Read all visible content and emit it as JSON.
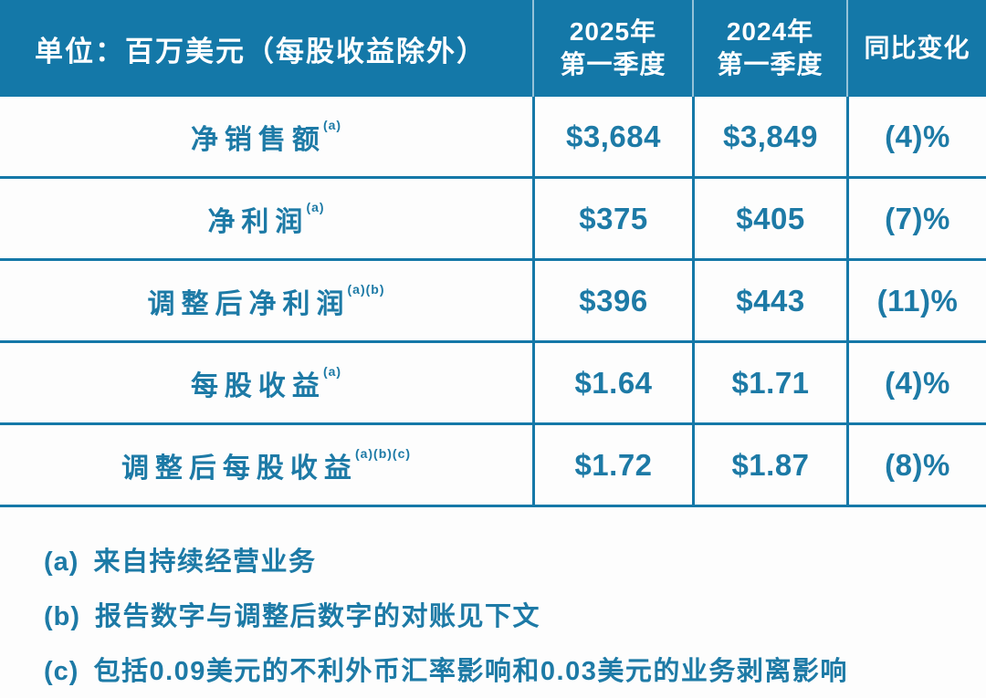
{
  "colors": {
    "header_background": "#1478a8",
    "header_text": "#ffffff",
    "body_text": "#1d7aa6",
    "grid_line": "#1578a8",
    "page_background": "#fdfdfd"
  },
  "table": {
    "header": {
      "unit_label": "单位：百万美元（每股收益除外）",
      "col_q1_2025": "2025年\n第一季度",
      "col_q1_2024": "2024年\n第一季度",
      "col_yoy": "同比变化"
    },
    "rows": [
      {
        "label": "净销售额",
        "footnote_marks": "(a)",
        "q1_2025": "$3,684",
        "q1_2024": "$3,849",
        "yoy_change": "(4)%"
      },
      {
        "label": "净利润",
        "footnote_marks": "(a)",
        "q1_2025": "$375",
        "q1_2024": "$405",
        "yoy_change": "(7)%"
      },
      {
        "label": "调整后净利润",
        "footnote_marks": "(a)(b)",
        "q1_2025": "$396",
        "q1_2024": "$443",
        "yoy_change": "(11)%"
      },
      {
        "label": "每股收益",
        "footnote_marks": "(a)",
        "q1_2025": "$1.64",
        "q1_2024": "$1.71",
        "yoy_change": "(4)%"
      },
      {
        "label": "调整后每股收益",
        "footnote_marks": "(a)(b)(c)",
        "q1_2025": "$1.72",
        "q1_2024": "$1.87",
        "yoy_change": "(8)%"
      }
    ]
  },
  "footnotes": [
    {
      "marker": "(a)",
      "text": "来自持续经营业务"
    },
    {
      "marker": "(b)",
      "text": "报告数字与调整后数字的对账见下文"
    },
    {
      "marker": "(c)",
      "text": "包括0.09美元的不利外币汇率影响和0.03美元的业务剥离影响"
    }
  ],
  "chart_data": {
    "type": "table",
    "title": "单位：百万美元（每股收益除外）",
    "columns": [
      "2025年第一季度",
      "2024年第一季度",
      "同比变化"
    ],
    "row_labels": [
      "净销售额 (a)",
      "净利润 (a)",
      "调整后净利润 (a)(b)",
      "每股收益 (a)",
      "调整后每股收益 (a)(b)(c)"
    ],
    "series": [
      {
        "name": "2025年第一季度",
        "values": [
          3684,
          375,
          396,
          1.64,
          1.72
        ]
      },
      {
        "name": "2024年第一季度",
        "values": [
          3849,
          405,
          443,
          1.71,
          1.87
        ]
      },
      {
        "name": "同比变化",
        "values": [
          "(4)%",
          "(7)%",
          "(11)%",
          "(4)%",
          "(8)%"
        ]
      }
    ],
    "notes": [
      "(a) 来自持续经营业务",
      "(b) 报告数字与调整后数字的对账见下文",
      "(c) 包括0.09美元的不利外币汇率影响和0.03美元的业务剥离影响"
    ]
  }
}
